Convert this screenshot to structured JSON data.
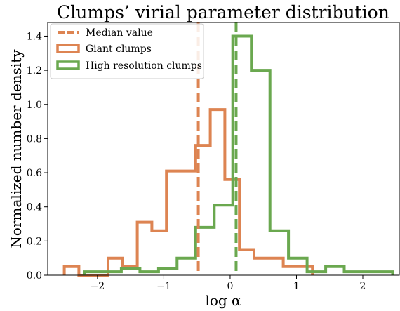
{
  "chart_data": {
    "type": "histogram",
    "title": "Clumps’ virial parameter distribution",
    "xlabel": "log α",
    "ylabel": "Normalized number density",
    "xlim": [
      -2.75,
      2.55
    ],
    "ylim": [
      0,
      1.48
    ],
    "xticks": [
      -2,
      -1,
      0,
      1,
      2
    ],
    "yticks": [
      0.0,
      0.2,
      0.4,
      0.6,
      0.8,
      1.0,
      1.2,
      1.4
    ],
    "xtick_labels": [
      "−2",
      "−1",
      "0",
      "1",
      "2"
    ],
    "ytick_labels": [
      "0.0",
      "0.2",
      "0.4",
      "0.6",
      "0.8",
      "1.0",
      "1.2",
      "1.4"
    ],
    "grid": false,
    "legend_position": "upper-left",
    "legend": [
      "Median value",
      "Giant clumps",
      "High resolution clumps"
    ],
    "series": [
      {
        "name": "Giant clumps",
        "color": "#dd8452",
        "edges": [
          -2.5,
          -2.28,
          -2.06,
          -1.84,
          -1.62,
          -1.4,
          -1.18,
          -0.96,
          -0.74,
          -0.52,
          -0.3,
          -0.08,
          0.14,
          0.36,
          0.58,
          0.8,
          1.02,
          1.24
        ],
        "values": [
          0.05,
          0.0,
          0.0,
          0.1,
          0.05,
          0.31,
          0.26,
          0.61,
          0.61,
          0.76,
          0.97,
          0.56,
          0.15,
          0.1,
          0.1,
          0.05,
          0.05
        ]
      },
      {
        "name": "High resolution clumps",
        "color": "#6aa84f",
        "edges": [
          -2.2,
          -1.92,
          -1.64,
          -1.36,
          -1.08,
          -0.8,
          -0.52,
          -0.24,
          0.04,
          0.32,
          0.6,
          0.88,
          1.16,
          1.44,
          1.72,
          2.0,
          2.28,
          2.45
        ],
        "values": [
          0.02,
          0.02,
          0.04,
          0.02,
          0.04,
          0.1,
          0.28,
          0.41,
          1.4,
          1.2,
          0.26,
          0.1,
          0.02,
          0.05,
          0.02,
          0.02,
          0.02
        ]
      }
    ],
    "medians": [
      {
        "series": "Giant clumps",
        "value": -0.48,
        "color": "#dd8452"
      },
      {
        "series": "High resolution clumps",
        "value": 0.09,
        "color": "#6aa84f"
      }
    ]
  }
}
